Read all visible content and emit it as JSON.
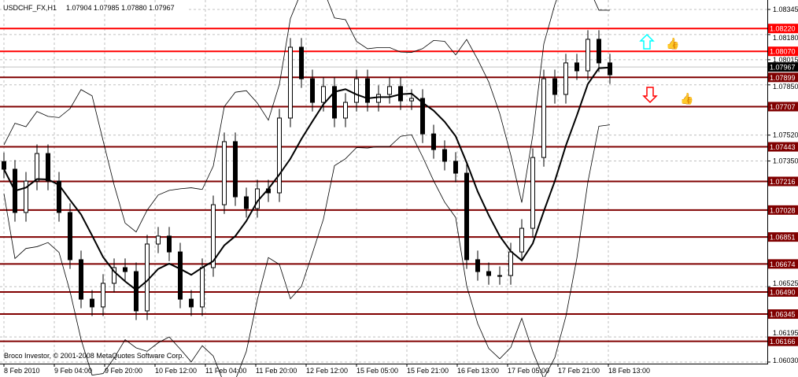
{
  "header": {
    "symbol": "USDCHF_FX,H1",
    "ohlc": "1.07904 1.07985 1.07880 1.07967"
  },
  "footer": {
    "copyright": "Broco Investor, © 2001-2008 MetaQuotes Software Corp."
  },
  "colors": {
    "background": "#ffffff",
    "candles": "#000000",
    "level_bright": "#ff0000",
    "level_dark": "#800000",
    "current_price": "#000000",
    "up_arrow": "#00ffff",
    "down_arrow": "#ff0000"
  },
  "signals": [
    {
      "icon": "up-arrow-icon",
      "color": "#00ffff"
    },
    {
      "icon": "thumbs-up-icon",
      "color": "#00ffff"
    },
    {
      "icon": "down-arrow-icon",
      "color": "#ff0000"
    },
    {
      "icon": "thumbs-up-icon",
      "color": "#00ffff"
    }
  ],
  "chart_data": {
    "type": "candlestick",
    "title": "USDCHF_FX,H1",
    "ylim": [
      1.0603,
      1.08345
    ],
    "grid": true,
    "y_ticks": [
      "1.08345",
      "1.08180",
      "1.08015",
      "1.07850",
      "1.07520",
      "1.07350",
      "1.06525",
      "1.06195",
      "1.06030"
    ],
    "x_ticks": [
      "8 Feb 2010",
      "9 Feb 04:00",
      "9 Feb 20:00",
      "10 Feb 12:00",
      "11 Feb 04:00",
      "11 Feb 20:00",
      "12 Feb 12:00",
      "15 Feb 05:00",
      "15 Feb 21:00",
      "16 Feb 13:00",
      "17 Feb 05:00",
      "17 Feb 21:00",
      "18 Feb 13:00"
    ],
    "current_price": "1.07967",
    "levels": [
      {
        "price": "1.08220",
        "style": "bright"
      },
      {
        "price": "1.08070",
        "style": "bright"
      },
      {
        "price": "1.07899",
        "style": "dark"
      },
      {
        "price": "1.07707",
        "style": "dark"
      },
      {
        "price": "1.07443",
        "style": "dark"
      },
      {
        "price": "1.07216",
        "style": "dark"
      },
      {
        "price": "1.07028",
        "style": "dark"
      },
      {
        "price": "1.06851",
        "style": "dark"
      },
      {
        "price": "1.06674",
        "style": "dark"
      },
      {
        "price": "1.06490",
        "style": "dark"
      },
      {
        "price": "1.06345",
        "style": "dark"
      },
      {
        "price": "1.06166",
        "style": "dark"
      }
    ],
    "closes": [
      1.07296,
      1.07012,
      1.07218,
      1.07399,
      1.07218,
      1.07012,
      1.06702,
      1.06443,
      1.06392,
      1.06547,
      1.0665,
      1.06624,
      1.06366,
      1.06805,
      1.06857,
      1.06753,
      1.06443,
      1.06392,
      1.0665,
      1.07063,
      1.07477,
      1.07115,
      1.07038,
      1.07167,
      1.07141,
      1.07632,
      1.08097,
      1.0789,
      1.07735,
      1.07839,
      1.07632,
      1.07735,
      1.0789,
      1.07735,
      1.07787,
      1.07839,
      1.07745,
      1.07761,
      1.07528,
      1.07425,
      1.07348,
      1.0727,
      1.06702,
      1.06624,
      1.06598,
      1.06598,
      1.06753,
      1.06908,
      1.07373,
      1.0789,
      1.07787,
      1.07994,
      1.07942,
      1.08149,
      1.07994,
      1.07916
    ]
  }
}
